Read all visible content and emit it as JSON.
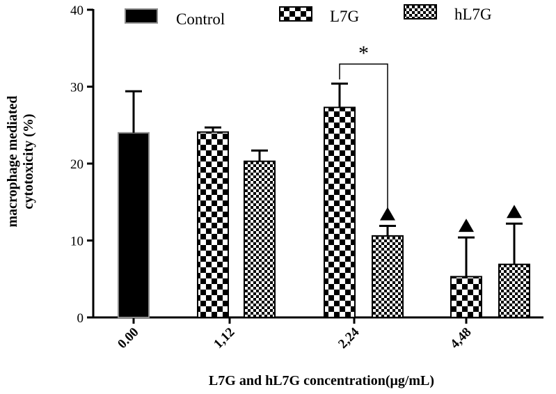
{
  "chart_data": {
    "type": "bar",
    "xlabel": "L7G and hL7G concentration(μg/mL)",
    "ylabel_lines": [
      "macrophage mediated",
      "cytotoxicity (%)"
    ],
    "ylim": [
      0,
      40
    ],
    "yticks": [
      0,
      10,
      20,
      30,
      40
    ],
    "categories": [
      "0.00",
      "1,12",
      "2,24",
      "4,48"
    ],
    "legend": [
      {
        "name": "Control",
        "pattern": "solid"
      },
      {
        "name": "L7G",
        "pattern": "checker"
      },
      {
        "name": "hL7G",
        "pattern": "fine-checker"
      }
    ],
    "bars": [
      {
        "series": "Control",
        "category": "0.00",
        "value": 24.0,
        "error": 5.4,
        "marker": ""
      },
      {
        "series": "L7G",
        "category": "1,12",
        "value": 24.1,
        "error": 0.6,
        "marker": ""
      },
      {
        "series": "hL7G",
        "category": "1,12",
        "value": 20.3,
        "error": 1.4,
        "marker": ""
      },
      {
        "series": "L7G",
        "category": "2,24",
        "value": 27.3,
        "error": 3.1,
        "marker": ""
      },
      {
        "series": "hL7G",
        "category": "2,24",
        "value": 10.6,
        "error": 1.3,
        "marker": "triangle"
      },
      {
        "series": "L7G",
        "category": "4,48",
        "value": 5.3,
        "error": 5.1,
        "marker": "triangle"
      },
      {
        "series": "hL7G",
        "category": "4,48",
        "value": 6.9,
        "error": 5.3,
        "marker": "triangle"
      }
    ],
    "significance": {
      "label": "*",
      "from_bar": 3,
      "to_bar": 4
    },
    "colors": {
      "control": "#000000",
      "control_edge": "#8c8c8c",
      "pattern": "#000000",
      "axis": "#000000"
    }
  }
}
